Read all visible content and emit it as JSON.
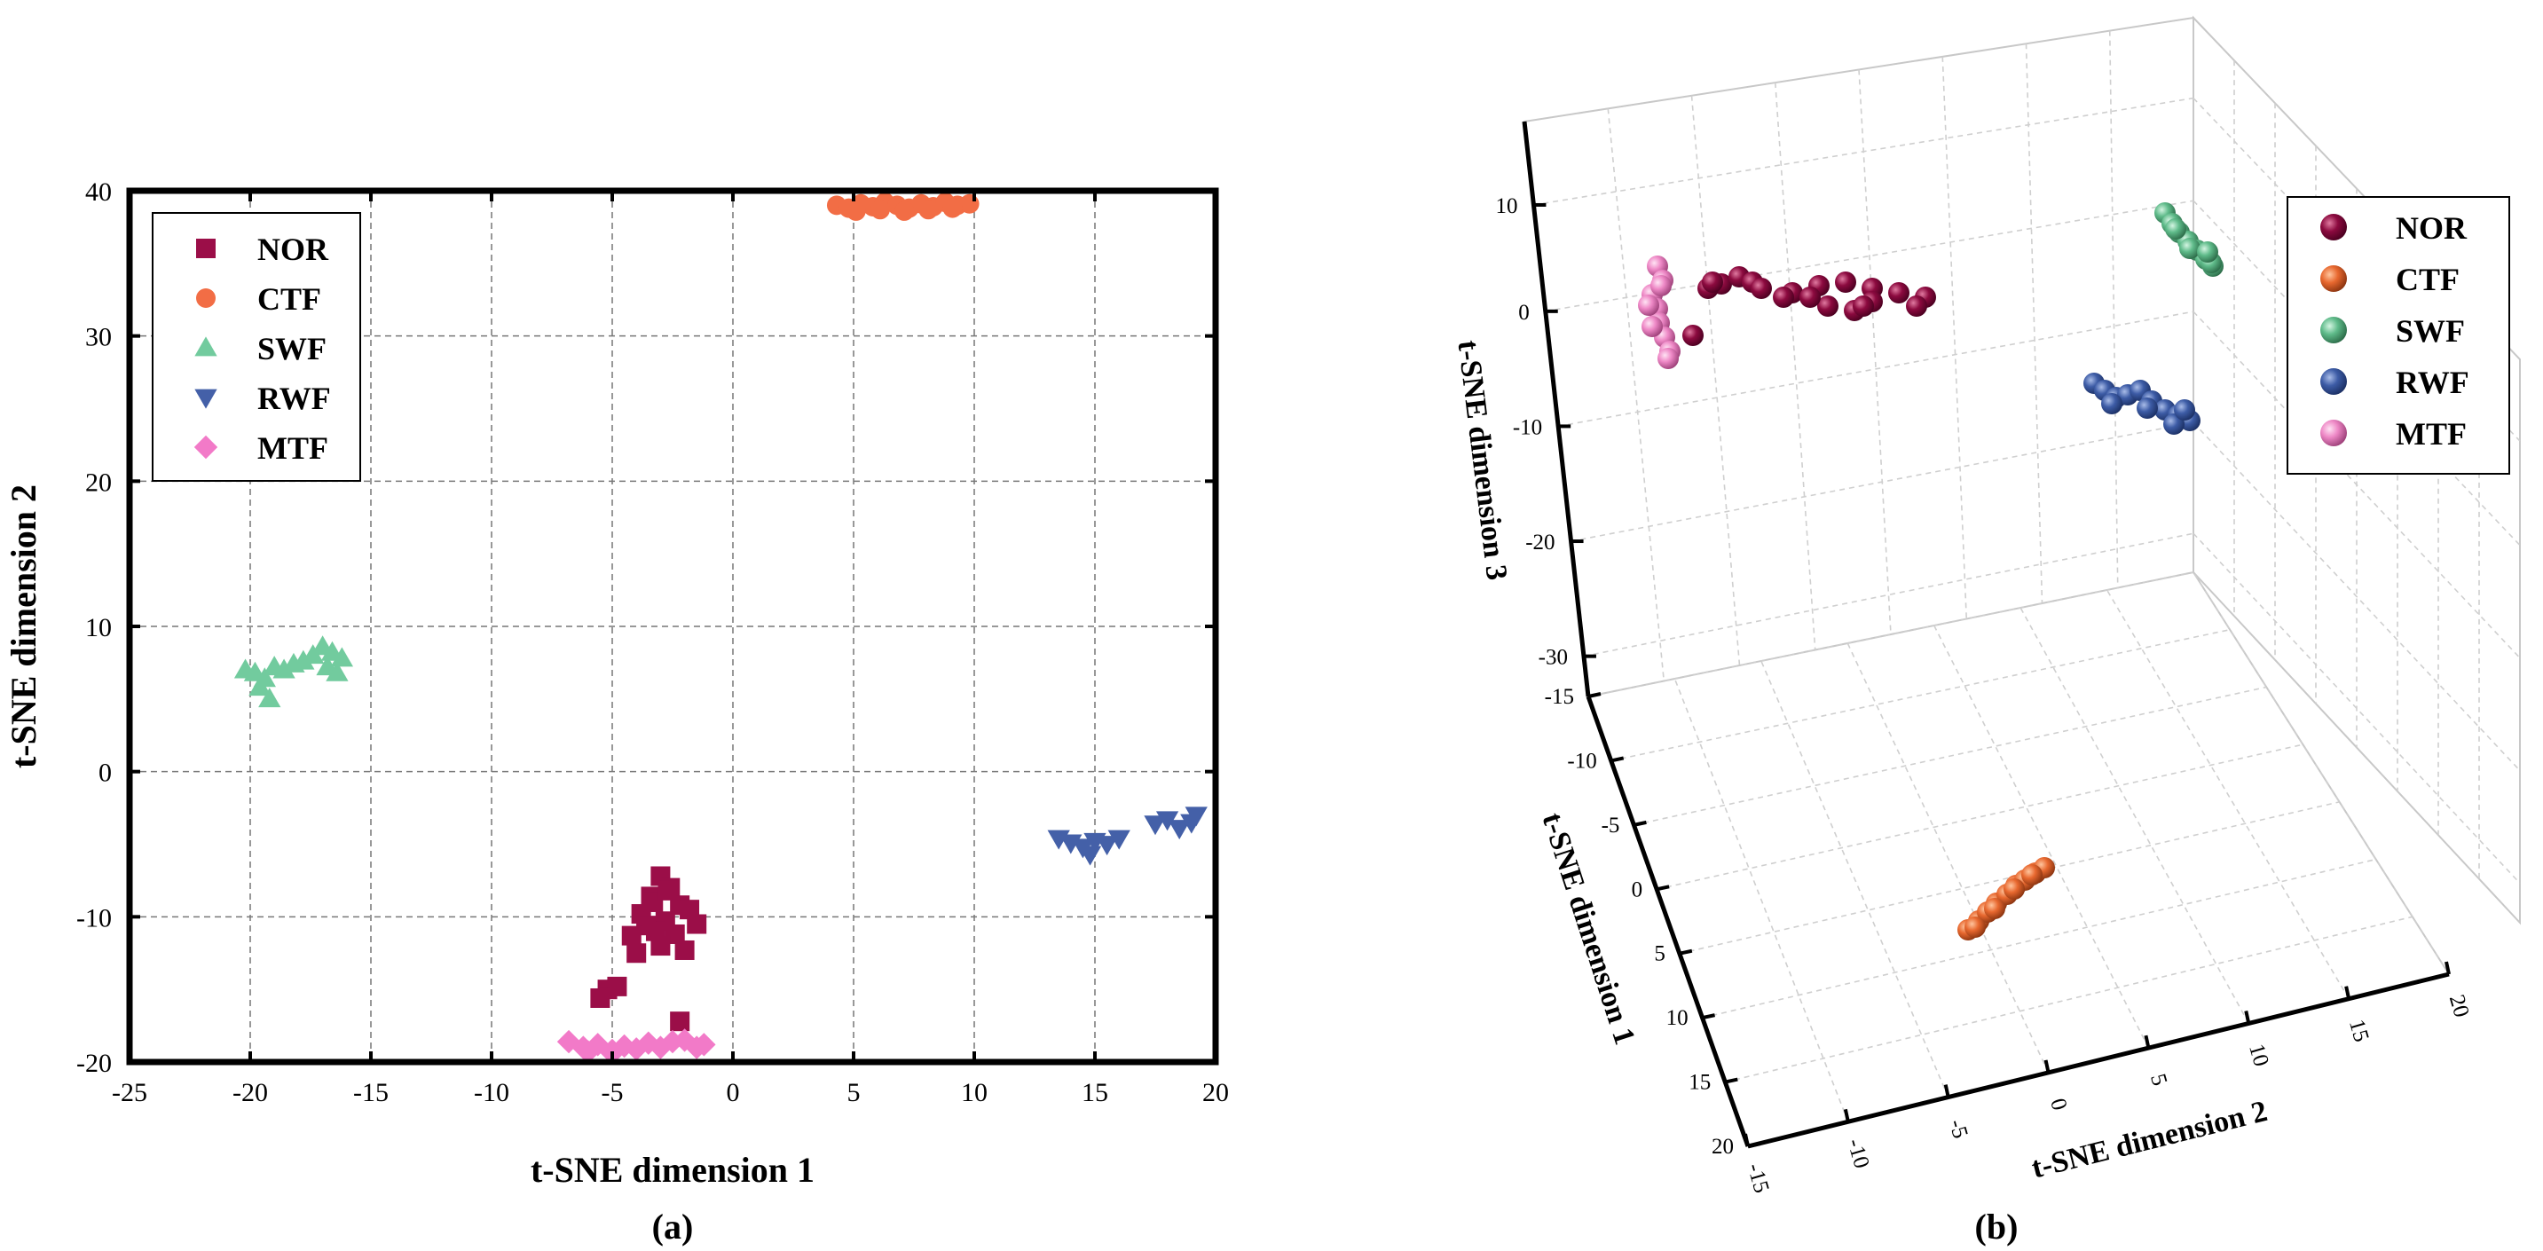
{
  "chart_data": [
    {
      "panel": "(a)",
      "type": "scatter",
      "xlabel": "t-SNE dimension 1",
      "ylabel": "t-SNE dimension 2",
      "xlim": [
        -25,
        20
      ],
      "ylim": [
        -20,
        40
      ],
      "xticks": [
        -25,
        -20,
        -15,
        -10,
        -5,
        0,
        5,
        10,
        15,
        20
      ],
      "yticks": [
        -20,
        -10,
        0,
        10,
        20,
        30,
        40
      ],
      "grid": true,
      "legend_position": "top-left",
      "series": [
        {
          "name": "NOR",
          "marker": "square",
          "color": "#9b0e48",
          "x": [
            -3,
            -2.6,
            -3.4,
            -2.2,
            -3.8,
            -2.8,
            -3.2,
            -2.4,
            -3.6,
            -1.8,
            -4.2,
            -3.0,
            -2.0,
            -1.5,
            -4.0,
            -3.3,
            -2.7,
            -5.2,
            -4.8,
            -5.5,
            -2.2
          ],
          "y": [
            -7.2,
            -8.0,
            -8.6,
            -9.2,
            -9.8,
            -10.3,
            -11.0,
            -11.2,
            -10.6,
            -9.5,
            -11.3,
            -12.0,
            -12.3,
            -10.5,
            -12.5,
            -9.0,
            -8.2,
            -15.0,
            -14.8,
            -15.6,
            -17.2
          ]
        },
        {
          "name": "CTF",
          "marker": "circle",
          "color": "#f26d45",
          "x": [
            4.3,
            4.8,
            5.3,
            5.8,
            6.3,
            6.8,
            7.3,
            7.8,
            8.3,
            8.8,
            9.3,
            9.8,
            5.1,
            6.1,
            7.1,
            8.1,
            9.1
          ],
          "y": [
            39.0,
            38.8,
            39.1,
            38.9,
            39.2,
            39.0,
            38.8,
            39.1,
            38.9,
            39.2,
            39.0,
            39.1,
            38.6,
            38.7,
            38.6,
            38.7,
            38.8
          ]
        },
        {
          "name": "SWF",
          "marker": "triangle-up",
          "color": "#72cb9e",
          "x": [
            -20.2,
            -19.8,
            -19.4,
            -19.0,
            -18.6,
            -18.2,
            -17.8,
            -17.4,
            -17.0,
            -16.6,
            -16.2,
            -19.6,
            -19.2,
            -16.8,
            -16.4
          ],
          "y": [
            7.0,
            6.8,
            6.4,
            7.2,
            7.0,
            7.4,
            7.6,
            8.0,
            8.6,
            8.2,
            7.8,
            5.8,
            5.0,
            7.2,
            6.8
          ]
        },
        {
          "name": "RWF",
          "marker": "triangle-down",
          "color": "#4460a8",
          "x": [
            13.5,
            14.0,
            14.5,
            15.0,
            15.5,
            16.0,
            14.8,
            17.5,
            18.0,
            18.5,
            19.0,
            19.2
          ],
          "y": [
            -4.6,
            -4.9,
            -5.2,
            -4.8,
            -5.0,
            -4.6,
            -5.7,
            -3.6,
            -3.3,
            -3.9,
            -3.5,
            -3.0
          ]
        },
        {
          "name": "MTF",
          "marker": "diamond",
          "color": "#f27ac8",
          "x": [
            -6.8,
            -6.2,
            -5.6,
            -5.0,
            -4.5,
            -4.0,
            -3.5,
            -3.0,
            -2.5,
            -2.0,
            -1.5,
            -1.2,
            -6.0,
            -5.0
          ],
          "y": [
            -18.6,
            -19.0,
            -18.8,
            -19.2,
            -18.9,
            -19.1,
            -18.7,
            -19.0,
            -18.6,
            -18.5,
            -19.0,
            -18.8,
            -19.3,
            -19.4
          ]
        }
      ]
    },
    {
      "panel": "(b)",
      "type": "scatter",
      "dimensions": 3,
      "xlabel": "t-SNE dimension 1",
      "ylabel": "t-SNE dimension 2",
      "zlabel": "t-SNE dimension 3",
      "xticks": [
        -15,
        -10,
        -5,
        0,
        5,
        10,
        15,
        20
      ],
      "yticks": [
        -15,
        -10,
        -5,
        0,
        5,
        10,
        15,
        20
      ],
      "zticks": [
        10,
        0,
        -10,
        -20,
        -30
      ],
      "grid": true,
      "legend_position": "top-right",
      "series": [
        {
          "name": "NOR",
          "marker": "sphere",
          "color": "#8c0a3f"
        },
        {
          "name": "CTF",
          "marker": "sphere",
          "color": "#e8682f"
        },
        {
          "name": "SWF",
          "marker": "sphere",
          "color": "#5fbb8a"
        },
        {
          "name": "RWF",
          "marker": "sphere",
          "color": "#3d5ca6"
        },
        {
          "name": "MTF",
          "marker": "sphere",
          "color": "#ee88c6"
        }
      ]
    }
  ]
}
